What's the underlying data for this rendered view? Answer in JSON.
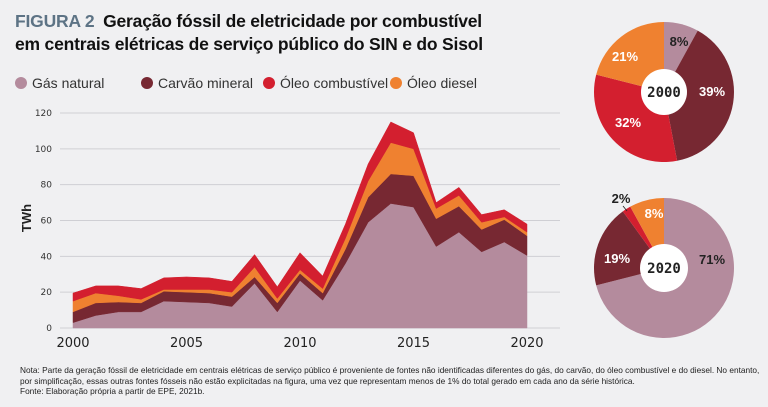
{
  "header": {
    "figure_label": "FIGURA 2",
    "title": "Geração fóssil de eletricidade por combustível em centrais elétricas de serviço público do SIN e do Sisol"
  },
  "colors": {
    "gas": "#b48b9d",
    "coal": "#772832",
    "fuel_oil": "#d31f2f",
    "diesel": "#ef8130",
    "figure_label": "#5d7385",
    "grid": "#cfcfd4"
  },
  "legend": [
    {
      "key": "gas",
      "label": "Gás natural"
    },
    {
      "key": "coal",
      "label": "Carvão mineral"
    },
    {
      "key": "fuel_oil",
      "label": "Óleo combustível"
    },
    {
      "key": "diesel",
      "label": "Óleo diesel"
    }
  ],
  "chart_data": [
    {
      "type": "area",
      "stacked": true,
      "title": "Geração fóssil de eletricidade por combustível em centrais elétricas de serviço público do SIN e do Sisol",
      "xlabel": "",
      "ylabel": "TWh",
      "xlim": [
        2000,
        2020
      ],
      "ylim": [
        0,
        120
      ],
      "yticks": [
        0,
        20,
        40,
        60,
        80,
        100,
        120
      ],
      "xticks": [
        2000,
        2005,
        2010,
        2015,
        2020
      ],
      "grid": true,
      "legend_position": "top",
      "x": [
        2000,
        2001,
        2002,
        2003,
        2004,
        2005,
        2006,
        2007,
        2008,
        2009,
        2010,
        2011,
        2012,
        2013,
        2014,
        2015,
        2016,
        2017,
        2018,
        2019,
        2020
      ],
      "series": [
        {
          "name": "Gás natural",
          "key": "gas",
          "values": [
            3,
            7,
            9,
            9,
            15,
            14.5,
            14,
            12,
            25,
            9,
            26.5,
            15.5,
            36,
            59,
            69.5,
            67.5,
            45.5,
            53.5,
            42.5,
            48,
            40.5
          ]
        },
        {
          "name": "Carvão mineral",
          "key": "coal",
          "values": [
            6,
            7,
            5.5,
            5,
            5.5,
            5.5,
            5.5,
            5.5,
            3.5,
            5,
            4,
            4,
            8,
            14,
            16.5,
            17.5,
            15.5,
            14.5,
            12.5,
            12.5,
            11
          ]
        },
        {
          "name": "Óleo diesel",
          "key": "diesel",
          "values": [
            6,
            5.5,
            3.5,
            2,
            1,
            1.5,
            2,
            2.5,
            5.5,
            2.5,
            2,
            2.5,
            6,
            9,
            17.5,
            15,
            5.7,
            6,
            4,
            1.5,
            2
          ]
        },
        {
          "name": "Óleo combustível",
          "key": "fuel_oil",
          "values": [
            4.5,
            4,
            5.5,
            6,
            6.5,
            7,
            6.5,
            6,
            7,
            6.5,
            9.5,
            7,
            8,
            9.5,
            11.5,
            9,
            3.3,
            4.5,
            4.3,
            4,
            4.5
          ]
        }
      ]
    },
    {
      "type": "pie",
      "title": "2000",
      "donut": true,
      "slices": [
        {
          "name": "Gás natural",
          "key": "gas",
          "value": 8,
          "label": "8%"
        },
        {
          "name": "Carvão mineral",
          "key": "coal",
          "value": 39,
          "label": "39%"
        },
        {
          "name": "Óleo combustível",
          "key": "fuel_oil",
          "value": 32,
          "label": "32%"
        },
        {
          "name": "Óleo diesel",
          "key": "diesel",
          "value": 21,
          "label": "21%"
        }
      ]
    },
    {
      "type": "pie",
      "title": "2020",
      "donut": true,
      "slices": [
        {
          "name": "Gás natural",
          "key": "gas",
          "value": 71,
          "label": "71%"
        },
        {
          "name": "Carvão mineral",
          "key": "coal",
          "value": 19,
          "label": "19%"
        },
        {
          "name": "Óleo combustível",
          "key": "fuel_oil",
          "value": 2,
          "label": "2%"
        },
        {
          "name": "Óleo diesel",
          "key": "diesel",
          "value": 8,
          "label": "8%"
        }
      ]
    }
  ],
  "footer": {
    "note": "Nota: Parte da geração fóssil de eletricidade em centrais elétricas de serviço público é proveniente de fontes não identificadas diferentes do gás, do carvão, do óleo combustível e do diesel. No entanto, por simplificação, essas outras fontes fósseis não estão explicitadas na figura, uma vez que representam menos de 1% do total gerado em cada ano da série histórica.",
    "source": "Fonte: Elaboração própria a partir de EPE, 2021b."
  }
}
